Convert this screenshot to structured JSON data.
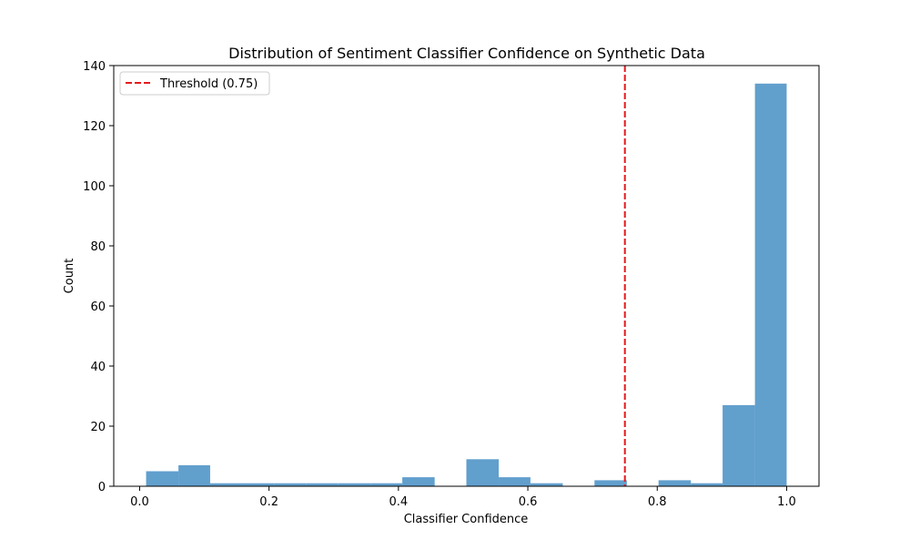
{
  "chart_data": {
    "type": "bar",
    "subtype": "histogram",
    "title": "Distribution of Sentiment Classifier Confidence on Synthetic Data",
    "xlabel": "Classifier Confidence",
    "ylabel": "Count",
    "xlim": [
      -0.04,
      1.05
    ],
    "ylim": [
      0,
      140
    ],
    "xticks": [
      0.0,
      0.2,
      0.4,
      0.6,
      0.8,
      1.0
    ],
    "xtick_labels": [
      "0.0",
      "0.2",
      "0.4",
      "0.6",
      "0.8",
      "1.0"
    ],
    "yticks": [
      0,
      20,
      40,
      60,
      80,
      100,
      120,
      140
    ],
    "ytick_labels": [
      "0",
      "20",
      "40",
      "60",
      "80",
      "100",
      "120",
      "140"
    ],
    "bar_color": "#3a87c0",
    "bar_opacity": 0.8,
    "grid": false,
    "bins": [
      {
        "x0": 0.01,
        "x1": 0.06,
        "count": 5
      },
      {
        "x0": 0.06,
        "x1": 0.109,
        "count": 7
      },
      {
        "x0": 0.109,
        "x1": 0.159,
        "count": 1
      },
      {
        "x0": 0.159,
        "x1": 0.208,
        "count": 1
      },
      {
        "x0": 0.208,
        "x1": 0.258,
        "count": 1
      },
      {
        "x0": 0.258,
        "x1": 0.307,
        "count": 1
      },
      {
        "x0": 0.307,
        "x1": 0.357,
        "count": 1
      },
      {
        "x0": 0.357,
        "x1": 0.406,
        "count": 1
      },
      {
        "x0": 0.406,
        "x1": 0.456,
        "count": 3
      },
      {
        "x0": 0.456,
        "x1": 0.505,
        "count": 0
      },
      {
        "x0": 0.505,
        "x1": 0.555,
        "count": 9
      },
      {
        "x0": 0.555,
        "x1": 0.604,
        "count": 3
      },
      {
        "x0": 0.604,
        "x1": 0.654,
        "count": 1
      },
      {
        "x0": 0.654,
        "x1": 0.703,
        "count": 0
      },
      {
        "x0": 0.703,
        "x1": 0.753,
        "count": 2
      },
      {
        "x0": 0.753,
        "x1": 0.802,
        "count": 0
      },
      {
        "x0": 0.802,
        "x1": 0.852,
        "count": 2
      },
      {
        "x0": 0.852,
        "x1": 0.901,
        "count": 1
      },
      {
        "x0": 0.901,
        "x1": 0.951,
        "count": 27
      },
      {
        "x0": 0.951,
        "x1": 1.0,
        "count": 134
      }
    ],
    "threshold": {
      "value": 0.75,
      "label": "Threshold (0.75)",
      "color": "#e41a1c",
      "style": "dashed"
    },
    "legend": {
      "placement": "top-left",
      "entries": [
        "Threshold (0.75)"
      ]
    }
  }
}
